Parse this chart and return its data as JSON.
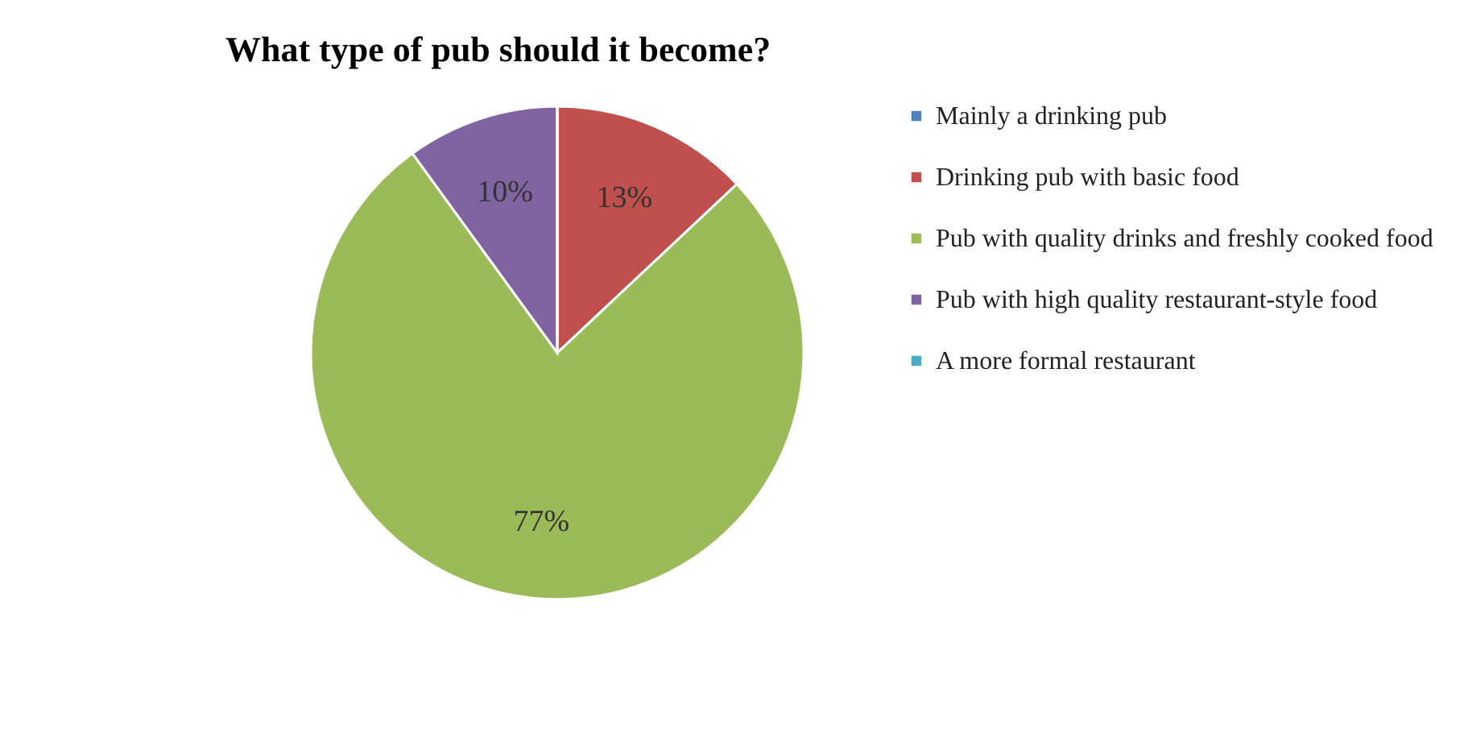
{
  "chart_data": {
    "type": "pie",
    "title": "What type of pub should it become?",
    "categories": [
      "Mainly a drinking pub",
      "Drinking pub with basic food",
      "Pub with quality drinks and freshly cooked food",
      "Pub with high quality restaurant-style food",
      "A more formal restaurant"
    ],
    "values": [
      0,
      13,
      77,
      10,
      0
    ],
    "colors": [
      "#4f81bd",
      "#c0504d",
      "#9bbb59",
      "#8064a2",
      "#4bacc6"
    ],
    "value_labels": [
      null,
      "13%",
      "77%",
      "10%",
      null
    ],
    "legend": "right"
  }
}
